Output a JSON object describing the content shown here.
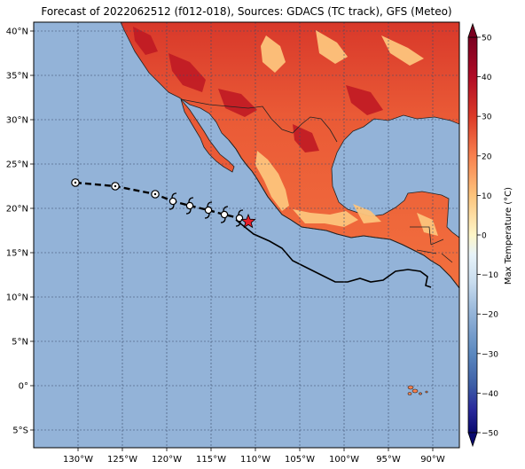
{
  "map": {
    "title": "Forecast of 2022062512 (f012-018), Sources: GDACS (TC track), GFS (Meteo)",
    "lon_range": [
      -135,
      -87
    ],
    "lat_range": [
      -7,
      41
    ],
    "lon_labels": [
      "130°W",
      "125°W",
      "120°W",
      "115°W",
      "110°W",
      "105°W",
      "100°W",
      "95°W",
      "90°W"
    ],
    "lat_labels": [
      "40°N",
      "35°N",
      "30°N",
      "25°N",
      "20°N",
      "15°N",
      "10°N",
      "5°N",
      "0°",
      "5°S"
    ],
    "ocean_color": "#93b3d8"
  },
  "colorbar": {
    "label": "Max Temperature (°C)",
    "ticks": [
      "50",
      "40",
      "30",
      "20",
      "10",
      "0",
      "−10",
      "−20",
      "−30",
      "−40",
      "−50"
    ],
    "colors": [
      "#08086e",
      "#2a2a9c",
      "#3d5ea6",
      "#5b88bf",
      "#93b3d8",
      "#c8dcee",
      "#e7f3f9",
      "#fef6c8",
      "#fdc47c",
      "#f8804e",
      "#dc3a28",
      "#b00c26",
      "#7a0020"
    ]
  },
  "track": {
    "past_points": [
      [
        -130.3,
        22.9
      ],
      [
        -125.8,
        22.5
      ],
      [
        -121.3,
        21.6
      ]
    ],
    "forecast_points": [
      [
        -119.3,
        20.8
      ],
      [
        -117.4,
        20.3
      ],
      [
        -115.3,
        19.8
      ],
      [
        -113.5,
        19.3
      ],
      [
        -111.8,
        18.9
      ]
    ],
    "current_position": [
      -110.8,
      18.5
    ],
    "line_color": "#000000",
    "marker_color": "#e8202a",
    "icon": "hurricane-icon"
  }
}
